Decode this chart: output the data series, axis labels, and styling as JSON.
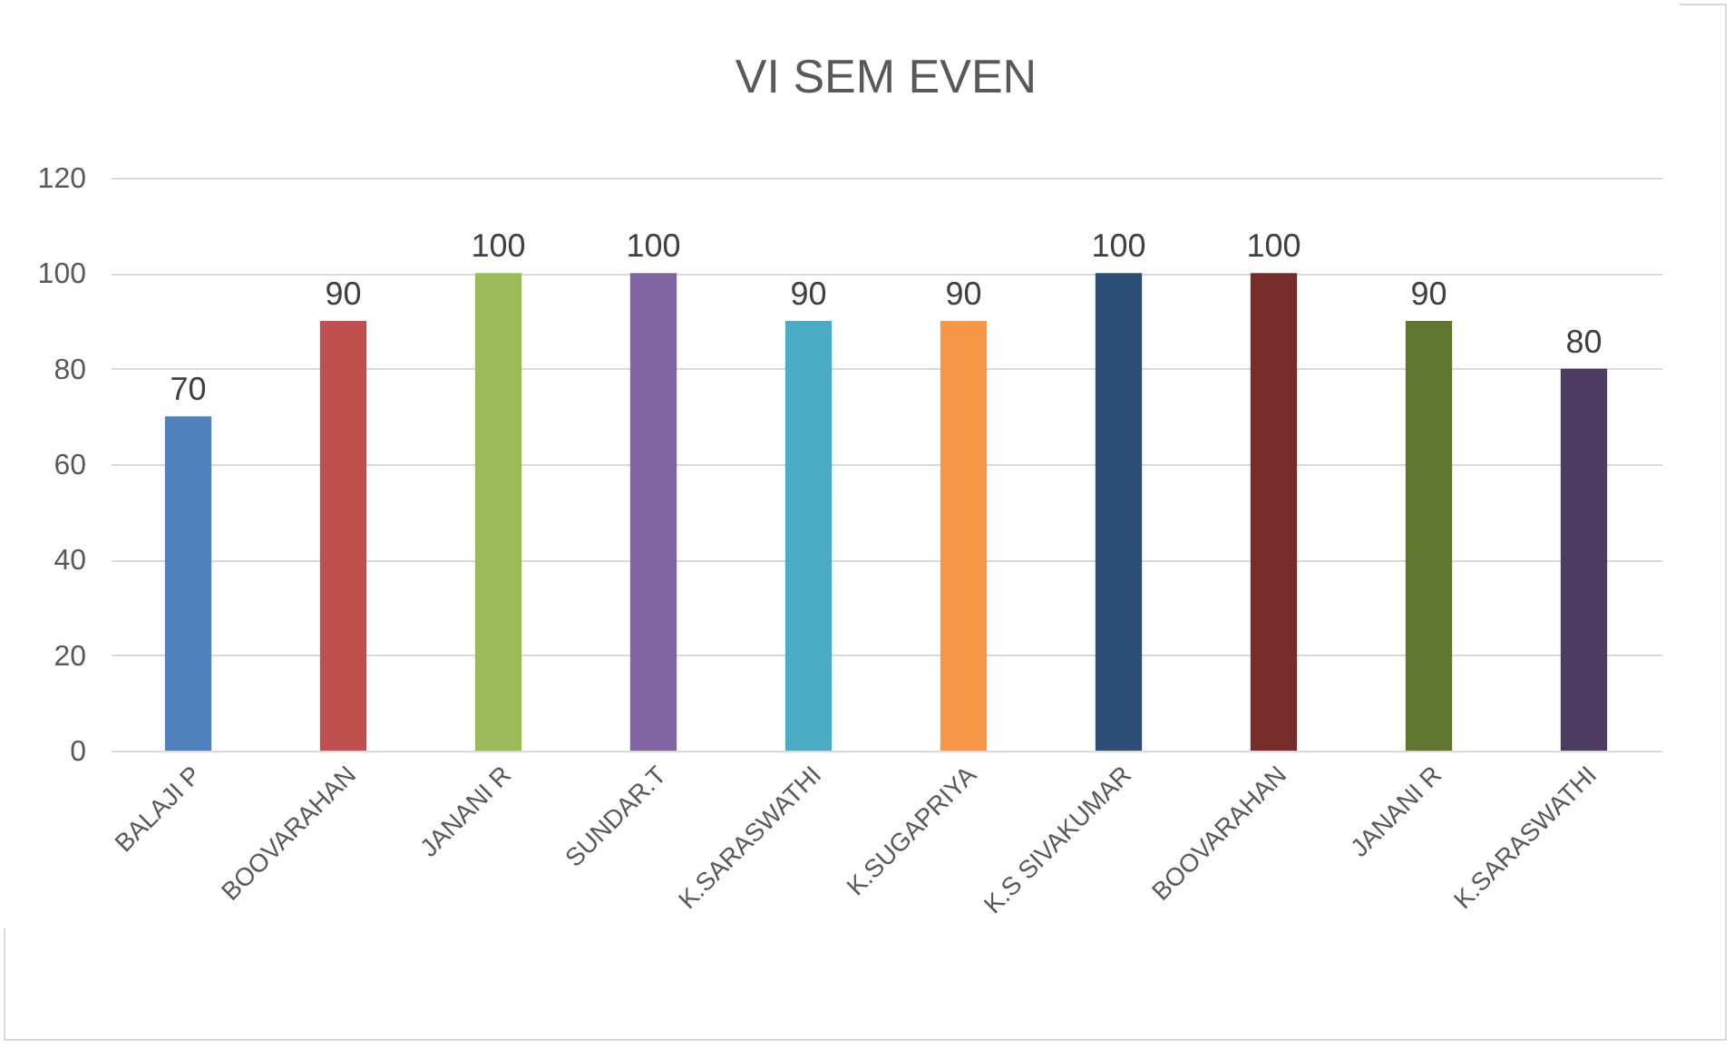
{
  "chart_data": {
    "type": "bar",
    "title": "VI SEM EVEN",
    "categories": [
      "BALAJI P",
      "BOOVARAHAN",
      "JANANI R",
      "SUNDAR.T",
      "K.SARASWATHI",
      "K.SUGAPRIYA",
      "K.S SIVAKUMAR",
      "BOOVARAHAN",
      "JANANI R",
      "K.SARASWATHI"
    ],
    "values": [
      70,
      90,
      100,
      100,
      90,
      90,
      100,
      100,
      90,
      80
    ],
    "colors": [
      "#4f81bd",
      "#c0504d",
      "#9bbb59",
      "#8064a2",
      "#4bacc6",
      "#f79646",
      "#2c4d75",
      "#772c2a",
      "#5f7530",
      "#4d3b62"
    ],
    "ylim": [
      0,
      120
    ],
    "yticks": [
      0,
      20,
      40,
      60,
      80,
      100,
      120
    ],
    "grid": "y",
    "data_labels": true,
    "legend": false
  }
}
